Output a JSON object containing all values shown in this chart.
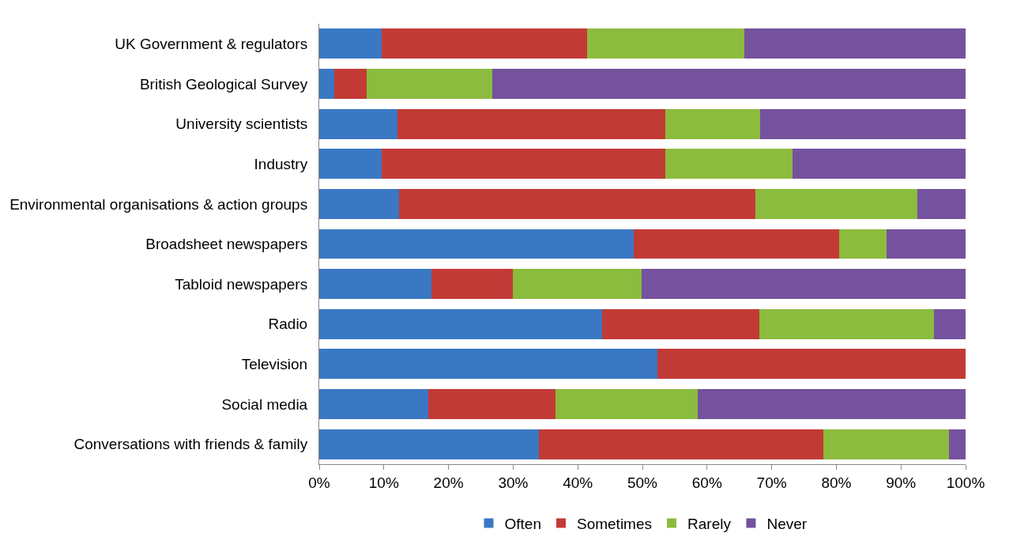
{
  "chart_data": {
    "type": "bar",
    "orientation": "horizontal",
    "stacked": true,
    "categories": [
      "UK Government & regulators",
      "British Geological Survey",
      "University scientists",
      "Industry",
      "Environmental organisations & action groups",
      "Broadsheet newspapers",
      "Tabloid newspapers",
      "Radio",
      "Television",
      "Social media",
      "Conversations with friends & family"
    ],
    "series": [
      {
        "name": "Often",
        "color": "#3a78c4",
        "values": [
          9.6,
          2.3,
          12.1,
          9.6,
          12.4,
          48.7,
          17.3,
          43.8,
          52.3,
          16.9,
          34.0
        ]
      },
      {
        "name": "Sometimes",
        "color": "#c23a36",
        "values": [
          31.8,
          5.0,
          41.4,
          43.9,
          55.1,
          31.7,
          12.7,
          24.3,
          47.7,
          19.6,
          44.0
        ]
      },
      {
        "name": "Rarely",
        "color": "#8cbb3e",
        "values": [
          24.4,
          19.5,
          14.7,
          19.7,
          25.0,
          7.4,
          19.9,
          27.0,
          0,
          22.0,
          19.4
        ]
      },
      {
        "name": "Never",
        "color": "#74529e",
        "values": [
          34.2,
          73.2,
          31.8,
          26.8,
          7.5,
          12.2,
          50.1,
          4.9,
          0,
          41.5,
          2.6
        ]
      }
    ],
    "xlim": [
      0,
      100
    ],
    "xticks": [
      {
        "value": 0,
        "label": "0%"
      },
      {
        "value": 10,
        "label": "10%"
      },
      {
        "value": 20,
        "label": "20%"
      },
      {
        "value": 30,
        "label": "30%"
      },
      {
        "value": 40,
        "label": "40%"
      },
      {
        "value": 50,
        "label": "50%"
      },
      {
        "value": 60,
        "label": "60%"
      },
      {
        "value": 70,
        "label": "70%"
      },
      {
        "value": 80,
        "label": "80%"
      },
      {
        "value": 90,
        "label": "90%"
      },
      {
        "value": 100,
        "label": "100%"
      }
    ],
    "legend": "bottom"
  }
}
